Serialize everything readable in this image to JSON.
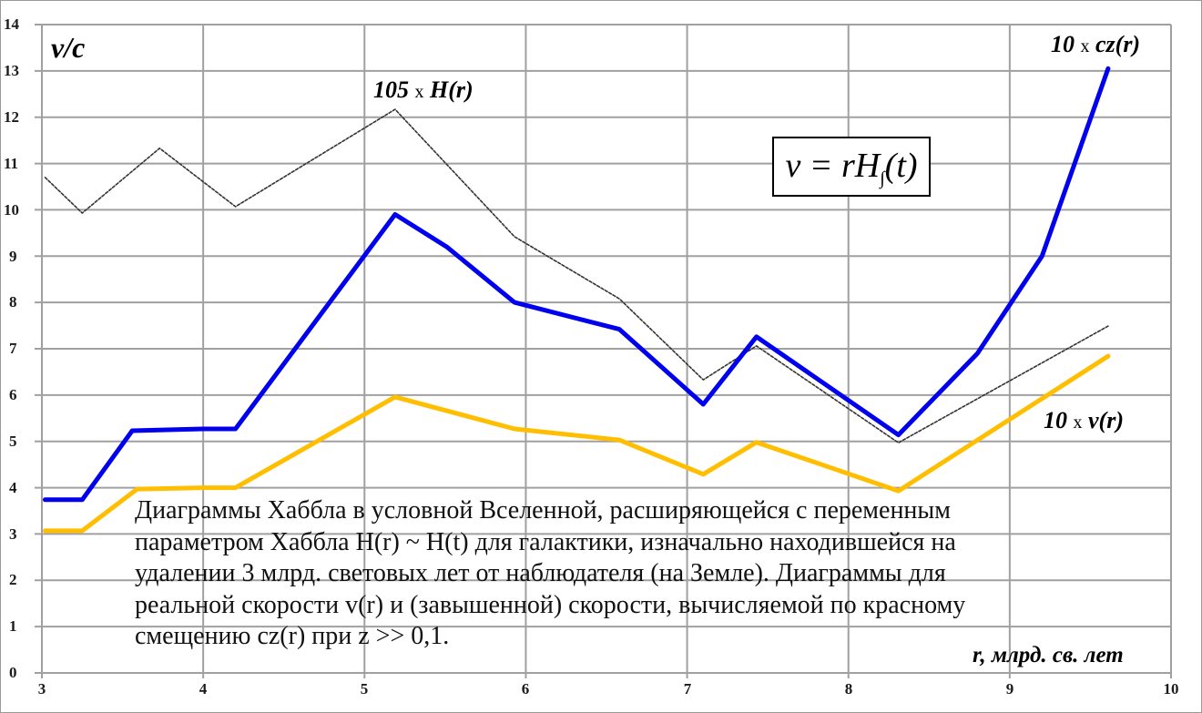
{
  "chart_data": {
    "type": "line",
    "title": "",
    "xlabel": "r, млрд. св. лет",
    "ylabel": "v/c",
    "xlim": [
      3,
      10
    ],
    "ylim": [
      0,
      14
    ],
    "grid": true,
    "x_ticks": [
      "3",
      "4",
      "5",
      "6",
      "7",
      "8",
      "9",
      "10"
    ],
    "y_ticks": [
      "0",
      "1",
      "2",
      "3",
      "4",
      "5",
      "6",
      "7",
      "8",
      "9",
      "10",
      "11",
      "12",
      "13",
      "14"
    ],
    "series": [
      {
        "name": "10 x cz(r)",
        "color": "#0000ee",
        "style": "solid-thick",
        "x": [
          3.02,
          3.25,
          3.56,
          4.0,
          4.2,
          5.19,
          5.51,
          5.93,
          6.58,
          7.1,
          7.43,
          8.31,
          8.8,
          9.2,
          9.61
        ],
        "y": [
          3.74,
          3.74,
          5.23,
          5.27,
          5.27,
          9.9,
          9.2,
          8.0,
          7.42,
          5.8,
          7.26,
          5.14,
          6.9,
          9.0,
          13.05
        ]
      },
      {
        "name": "10 x v(r)",
        "color": "#ffbf00",
        "style": "solid-thick",
        "x": [
          3.02,
          3.25,
          3.59,
          4.0,
          4.2,
          5.19,
          5.93,
          6.58,
          7.1,
          7.43,
          8.31,
          9.61
        ],
        "y": [
          3.07,
          3.07,
          3.97,
          4.0,
          4.0,
          5.96,
          5.27,
          5.03,
          4.29,
          4.98,
          3.93,
          6.84
        ]
      },
      {
        "name": "105 x H(r)",
        "color": "#333333",
        "style": "dotted",
        "x": [
          3.02,
          3.25,
          3.73,
          4.2,
          5.19,
          5.93,
          6.58,
          7.1,
          7.43,
          8.31,
          9.61
        ],
        "y": [
          10.7,
          9.93,
          11.33,
          10.07,
          12.17,
          9.42,
          8.08,
          6.33,
          7.06,
          4.97,
          7.49
        ]
      }
    ],
    "annotations": [
      {
        "text": "v/c",
        "role": "y-axis-title"
      },
      {
        "text": "105 x H(r)",
        "role": "series-label"
      },
      {
        "text": "10 x cz(r)",
        "role": "series-label"
      },
      {
        "text": "10 x v(r)",
        "role": "series-label"
      },
      {
        "text": "v = rH∫(t)",
        "role": "formula-box"
      },
      {
        "text": "r, млрд. св. лет",
        "role": "x-axis-title"
      }
    ]
  },
  "labels": {
    "y_title": "v/c",
    "h_label_num": "105",
    "h_label_x": "x",
    "h_label_fn": "H(r)",
    "cz_label_num": "10",
    "cz_label_x": "x",
    "cz_label_fn": "cz(r)",
    "v_label_num": "10",
    "v_label_x": "x",
    "v_label_fn": "v(r)",
    "x_title": "r, млрд. св. лет"
  },
  "formula": {
    "lhs": "v = rH",
    "sub": "∫",
    "rhs": "(t)"
  },
  "caption": {
    "lines": [
      "Диаграммы Хаббла в условной Вселенной, расширяющейся с переменным",
      "параметром Хаббла H(r) ~ H(t) для галактики, изначально находившейся на",
      "удалении 3 млрд. световых лет от наблюдателя (на Земле). Диаграммы для",
      "реальной скорости v(r) и (завышенной) скорости, вычисляемой  по красному",
      "смещению cz(r) при z >> 0,1."
    ]
  },
  "axes": {
    "y_ticks": [
      "14",
      "13",
      "12",
      "11",
      "10",
      "9",
      "8",
      "7",
      "6",
      "5",
      "4",
      "3",
      "2",
      "1",
      "0"
    ],
    "x_ticks": [
      "3",
      "4",
      "5",
      "6",
      "7",
      "8",
      "9",
      "10"
    ]
  },
  "colors": {
    "cz_line": "#0000ee",
    "v_line": "#ffbf00",
    "h_line": "#333333",
    "grid": "#a0a0a0"
  }
}
